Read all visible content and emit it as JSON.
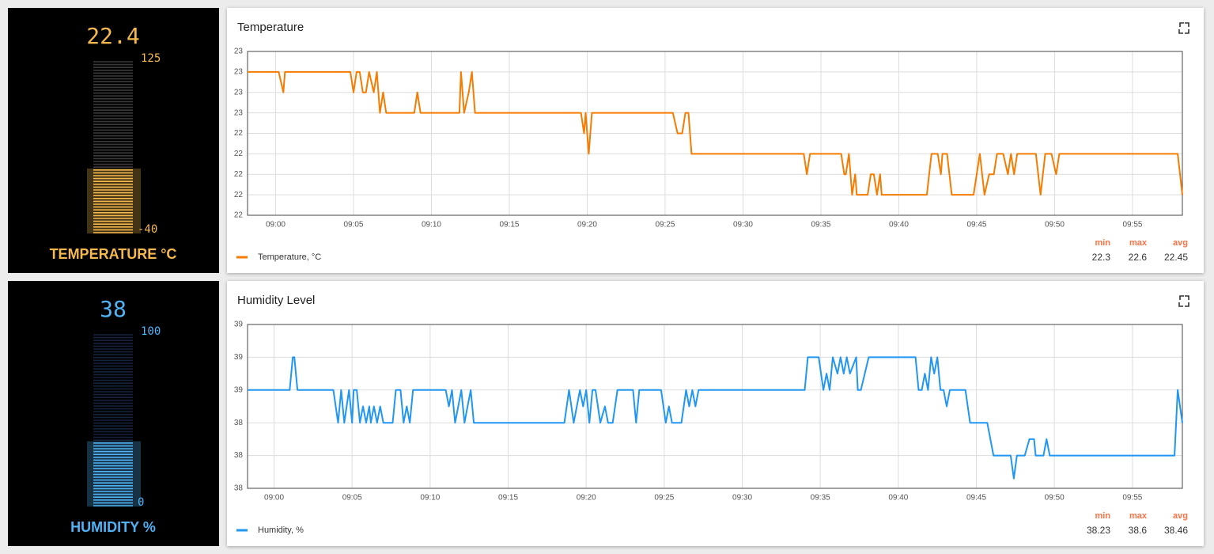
{
  "gauges": [
    {
      "title": "TEMPERATURE °C",
      "value": 22.4,
      "min": -40,
      "max": 125,
      "color": "#f6b94e",
      "dim": "#3a3a3a"
    },
    {
      "title": "HUMIDITY %",
      "value": 38,
      "min": 0,
      "max": 100,
      "color": "#4fb3f6",
      "dim": "#16233d"
    }
  ],
  "chart_data": [
    {
      "type": "line",
      "title": "Temperature",
      "x": [
        538.2,
        540.2,
        540.5,
        540.6,
        544.8,
        545.0,
        545.2,
        545.4,
        545.6,
        545.8,
        546.0,
        546.3,
        546.5,
        546.7,
        546.9,
        547.1,
        548.9,
        549.1,
        549.3,
        551.8,
        551.9,
        552.1,
        552.4,
        552.6,
        552.8,
        559.6,
        559.8,
        559.9,
        560.1,
        560.3,
        565.5,
        565.8,
        566.1,
        566.3,
        566.5,
        566.7,
        573.9,
        574.1,
        574.3,
        576.3,
        576.5,
        576.6,
        576.8,
        577.0,
        577.2,
        577.3,
        578.0,
        578.2,
        578.4,
        578.6,
        578.8,
        578.9,
        581.8,
        582.1,
        582.5,
        582.7,
        582.8,
        583.1,
        583.4,
        584.8,
        585.2,
        585.5,
        585.8,
        586.1,
        586.3,
        586.7,
        587.0,
        587.2,
        587.4,
        587.6,
        588.8,
        589.1,
        589.4,
        589.8,
        590.1,
        590.3,
        597.9,
        598.2
      ],
      "series": [
        {
          "name": "Temperature, °C",
          "color": "#f57c00",
          "values": [
            22.6,
            22.6,
            22.55,
            22.6,
            22.6,
            22.55,
            22.6,
            22.6,
            22.55,
            22.55,
            22.6,
            22.55,
            22.6,
            22.5,
            22.55,
            22.5,
            22.5,
            22.55,
            22.5,
            22.5,
            22.6,
            22.5,
            22.55,
            22.6,
            22.5,
            22.5,
            22.45,
            22.5,
            22.4,
            22.5,
            22.5,
            22.45,
            22.45,
            22.5,
            22.5,
            22.4,
            22.4,
            22.35,
            22.4,
            22.4,
            22.35,
            22.35,
            22.4,
            22.3,
            22.35,
            22.3,
            22.3,
            22.35,
            22.35,
            22.3,
            22.35,
            22.3,
            22.3,
            22.4,
            22.4,
            22.35,
            22.4,
            22.4,
            22.3,
            22.3,
            22.4,
            22.3,
            22.35,
            22.35,
            22.4,
            22.4,
            22.35,
            22.4,
            22.35,
            22.4,
            22.4,
            22.3,
            22.4,
            22.4,
            22.35,
            22.4,
            22.4,
            22.3
          ]
        }
      ],
      "xlim": [
        538.2,
        598.2
      ],
      "xticks": [
        {
          "value": 540,
          "label": "09:00"
        },
        {
          "value": 545,
          "label": "09:05"
        },
        {
          "value": 550,
          "label": "09:10"
        },
        {
          "value": 555,
          "label": "09:15"
        },
        {
          "value": 560,
          "label": "09:20"
        },
        {
          "value": 565,
          "label": "09:25"
        },
        {
          "value": 570,
          "label": "09:30"
        },
        {
          "value": 575,
          "label": "09:35"
        },
        {
          "value": 580,
          "label": "09:40"
        },
        {
          "value": 585,
          "label": "09:45"
        },
        {
          "value": 590,
          "label": "09:50"
        },
        {
          "value": 595,
          "label": "09:55"
        }
      ],
      "ylim": [
        22.25,
        22.65
      ],
      "yticks": [
        {
          "value": 22.25,
          "label": "22"
        },
        {
          "value": 22.3,
          "label": "22"
        },
        {
          "value": 22.35,
          "label": "22"
        },
        {
          "value": 22.4,
          "label": "22"
        },
        {
          "value": 22.45,
          "label": "22"
        },
        {
          "value": 22.5,
          "label": "23"
        },
        {
          "value": 22.55,
          "label": "23"
        },
        {
          "value": 22.6,
          "label": "23"
        },
        {
          "value": 22.65,
          "label": "23"
        }
      ],
      "grid": true,
      "stats": {
        "labels": [
          "min",
          "max",
          "avg"
        ],
        "values": [
          22.3,
          22.6,
          22.45
        ]
      }
    },
    {
      "type": "line",
      "title": "Humidity Level",
      "x": [
        538.3,
        541.0,
        541.2,
        541.3,
        541.5,
        543.8,
        544.1,
        544.3,
        544.5,
        544.8,
        545.0,
        545.1,
        545.3,
        545.5,
        545.7,
        545.9,
        546.1,
        546.2,
        546.4,
        546.6,
        546.8,
        547.0,
        547.6,
        547.8,
        548.1,
        548.3,
        548.5,
        548.7,
        548.9,
        551.0,
        551.2,
        551.4,
        551.6,
        551.8,
        552.0,
        552.2,
        552.4,
        552.6,
        552.8,
        558.6,
        558.9,
        559.2,
        559.6,
        559.8,
        560.0,
        560.2,
        560.4,
        560.6,
        560.9,
        561.2,
        561.4,
        561.7,
        562.0,
        563.0,
        563.2,
        563.4,
        564.8,
        565.1,
        565.3,
        565.5,
        566.1,
        566.4,
        566.6,
        566.8,
        567.0,
        567.2,
        574.0,
        574.2,
        574.9,
        575.2,
        575.4,
        575.6,
        575.8,
        576.1,
        576.3,
        576.5,
        576.7,
        576.9,
        577.3,
        577.4,
        577.6,
        578.1,
        581.1,
        581.3,
        581.5,
        581.7,
        581.9,
        582.1,
        582.3,
        582.5,
        582.7,
        582.9,
        583.1,
        583.3,
        584.3,
        584.6,
        585.7,
        586.1,
        587.2,
        587.4,
        587.6,
        588.1,
        588.4,
        588.7,
        588.8,
        589.3,
        589.5,
        589.7,
        597.7,
        597.9,
        598.2
      ],
      "series": [
        {
          "name": "Humidity, %",
          "color": "#2196f3",
          "values": [
            38.5,
            38.5,
            38.6,
            38.6,
            38.5,
            38.5,
            38.4,
            38.5,
            38.4,
            38.5,
            38.4,
            38.5,
            38.5,
            38.4,
            38.45,
            38.4,
            38.45,
            38.4,
            38.45,
            38.4,
            38.45,
            38.4,
            38.4,
            38.5,
            38.5,
            38.4,
            38.45,
            38.4,
            38.5,
            38.5,
            38.45,
            38.5,
            38.4,
            38.45,
            38.5,
            38.4,
            38.45,
            38.5,
            38.4,
            38.4,
            38.5,
            38.4,
            38.5,
            38.45,
            38.5,
            38.4,
            38.5,
            38.5,
            38.4,
            38.45,
            38.4,
            38.4,
            38.5,
            38.5,
            38.4,
            38.5,
            38.5,
            38.4,
            38.45,
            38.4,
            38.4,
            38.5,
            38.45,
            38.5,
            38.45,
            38.5,
            38.5,
            38.6,
            38.6,
            38.5,
            38.55,
            38.5,
            38.6,
            38.55,
            38.6,
            38.55,
            38.6,
            38.55,
            38.6,
            38.5,
            38.5,
            38.6,
            38.6,
            38.5,
            38.5,
            38.55,
            38.5,
            38.6,
            38.55,
            38.6,
            38.5,
            38.5,
            38.45,
            38.5,
            38.5,
            38.4,
            38.4,
            38.3,
            38.3,
            38.23,
            38.3,
            38.3,
            38.35,
            38.35,
            38.3,
            38.3,
            38.35,
            38.3,
            38.3,
            38.5,
            38.4
          ]
        }
      ],
      "xlim": [
        538.3,
        598.2
      ],
      "xticks": [
        {
          "value": 540,
          "label": "09:00"
        },
        {
          "value": 545,
          "label": "09:05"
        },
        {
          "value": 550,
          "label": "09:10"
        },
        {
          "value": 555,
          "label": "09:15"
        },
        {
          "value": 560,
          "label": "09:20"
        },
        {
          "value": 565,
          "label": "09:25"
        },
        {
          "value": 570,
          "label": "09:30"
        },
        {
          "value": 575,
          "label": "09:35"
        },
        {
          "value": 580,
          "label": "09:40"
        },
        {
          "value": 585,
          "label": "09:45"
        },
        {
          "value": 590,
          "label": "09:50"
        },
        {
          "value": 595,
          "label": "09:55"
        }
      ],
      "ylim": [
        38.2,
        38.7
      ],
      "yticks": [
        {
          "value": 38.2,
          "label": "38"
        },
        {
          "value": 38.3,
          "label": "38"
        },
        {
          "value": 38.4,
          "label": "38"
        },
        {
          "value": 38.5,
          "label": "39"
        },
        {
          "value": 38.6,
          "label": "39"
        },
        {
          "value": 38.7,
          "label": "39"
        }
      ],
      "grid": true,
      "stats": {
        "labels": [
          "min",
          "max",
          "avg"
        ],
        "values": [
          38.23,
          38.6,
          38.46
        ]
      }
    }
  ]
}
